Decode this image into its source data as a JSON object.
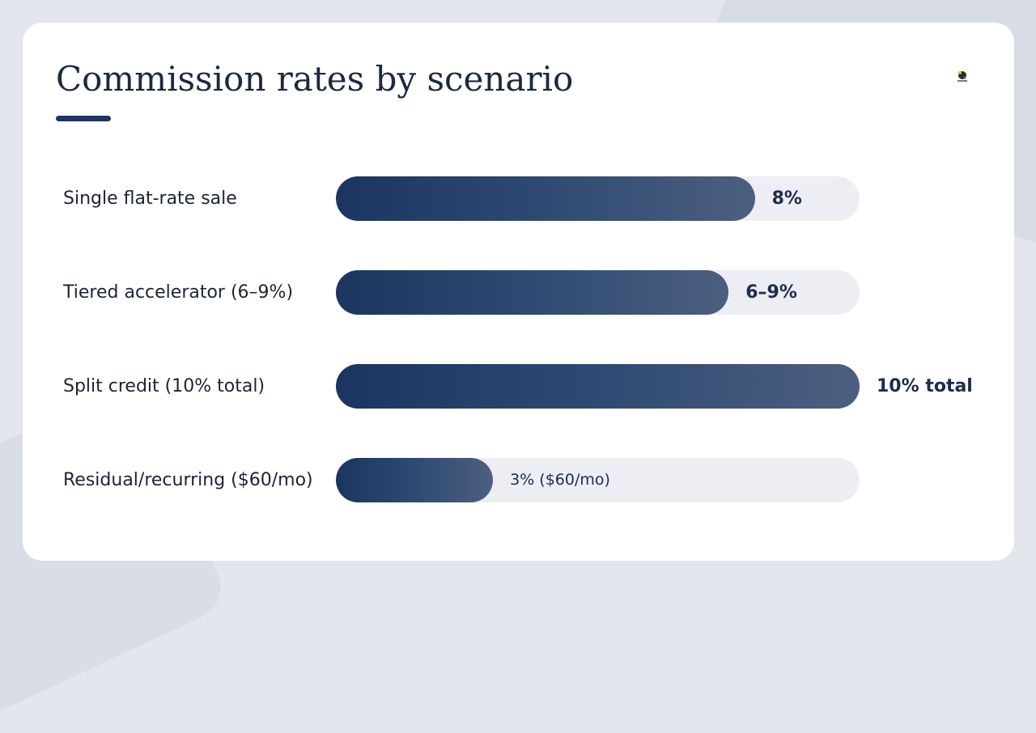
{
  "slide": {
    "title": "Commission rates by scenario"
  },
  "colors": {
    "bar_start": "#1b3560",
    "bar_end": "#4c5f80",
    "track": "#eceef3",
    "text": "#1c2434",
    "accent_rule": "#1e3560"
  },
  "icons": {
    "logo": "brand-logo-icon"
  },
  "chart_data": {
    "type": "bar",
    "orientation": "horizontal",
    "title": "Commission rates by scenario",
    "xlim": [
      0,
      10
    ],
    "grid": false,
    "legend": "none",
    "categories": [
      "Single flat-rate sale",
      "Tiered accelerator (6–9%)",
      "Split credit (10% total)",
      "Residual/recurring ($60/mo)"
    ],
    "values": [
      8,
      7.5,
      10,
      3
    ],
    "value_labels": [
      "8%",
      "6–9%",
      "10% total",
      "3% ($60/mo)"
    ]
  }
}
